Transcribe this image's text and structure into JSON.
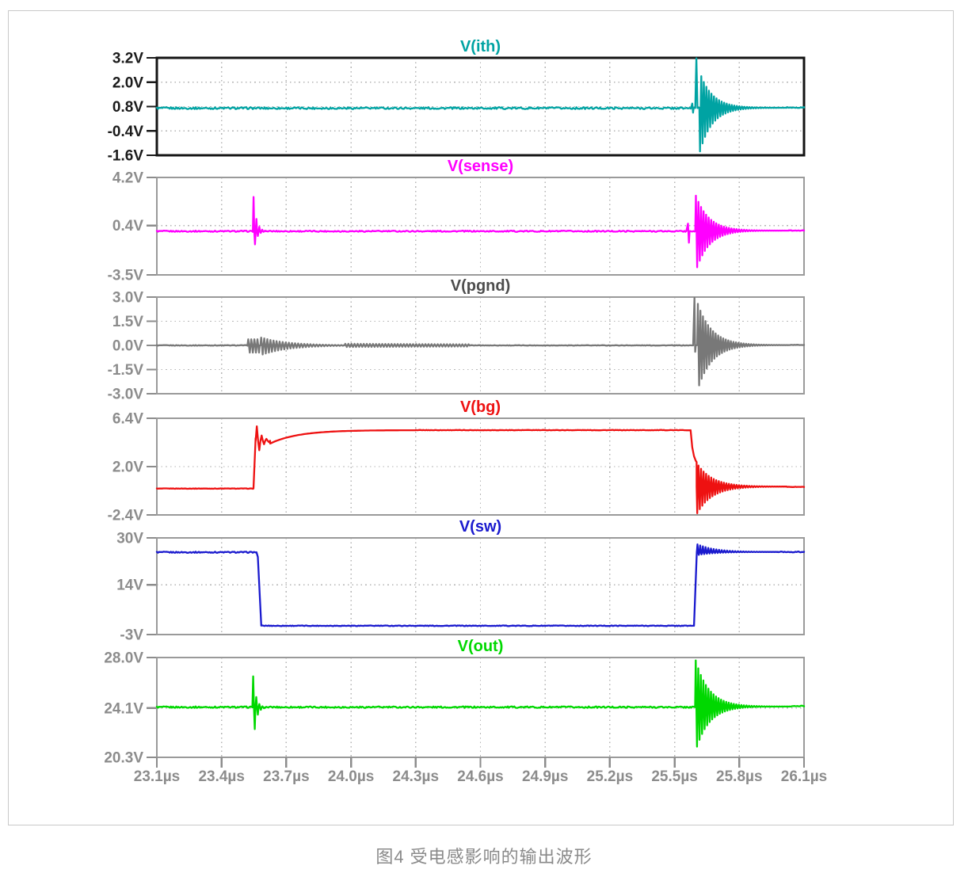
{
  "caption": "图4 受电感影响的输出波形",
  "styles": {
    "background": "#ffffff",
    "figure_border_color": "#c9c9c9",
    "panel_border_color": "#9a9a9a",
    "selected_panel_border_color": "#141414",
    "grid_color": "#b5b5b5",
    "axis_label_color": "#8c8c8c",
    "selected_axis_label_color": "#1a1a1a",
    "caption_color": "#8a8a8a"
  },
  "chart_data": {
    "type": "line",
    "title": "",
    "x_unit": "µs",
    "x_range": [
      23.1,
      26.1
    ],
    "x_tick_step": 0.3,
    "x_tick_labels": [
      "23.1µs",
      "23.4µs",
      "23.7µs",
      "24.0µs",
      "24.3µs",
      "24.6µs",
      "24.9µs",
      "25.2µs",
      "25.5µs",
      "25.8µs",
      "26.1µs"
    ],
    "grid": true,
    "legend_position": "panel-titles",
    "panels": [
      {
        "id": "vith",
        "title": "V(ith)",
        "color": "#00a3a3",
        "selected": true,
        "y_range": [
          -1.6,
          3.2
        ],
        "y_ticks": [
          {
            "label": "3.2V",
            "value": 3.2
          },
          {
            "label": "2.0V",
            "value": 2.0
          },
          {
            "label": "0.8V",
            "value": 0.8
          },
          {
            "label": "-0.4V",
            "value": -0.4
          },
          {
            "label": "-1.6V",
            "value": -1.6
          }
        ],
        "segments": [
          {
            "type": "flat",
            "t0": 23.1,
            "t1": 25.575,
            "v": 0.72,
            "noise": 0.045
          },
          {
            "type": "spike",
            "t": 25.582,
            "base": 0.72,
            "hi": 0.95,
            "lo": 0.5,
            "w": 0.012
          },
          {
            "type": "flat",
            "t0": 25.588,
            "t1": 25.594,
            "v": 0.73,
            "noise": 0.02
          },
          {
            "type": "spike",
            "t": 25.601,
            "base": 0.73,
            "hi": 3.18,
            "w": 0.01
          },
          {
            "type": "burst",
            "t0": 25.615,
            "t1": 26.02,
            "center": 0.74,
            "hi": 2.55,
            "lo": -1.52,
            "f": 85,
            "decay": 0.058,
            "phase": 3.14159
          },
          {
            "type": "flat",
            "t0": 26.02,
            "t1": 26.1,
            "v": 0.75,
            "noise": 0.02
          }
        ]
      },
      {
        "id": "vsense",
        "title": "V(sense)",
        "color": "#ff00ff",
        "selected": false,
        "y_range": [
          -3.5,
          4.2
        ],
        "y_ticks": [
          {
            "label": "4.2V",
            "value": 4.2
          },
          {
            "label": "0.4V",
            "value": 0.4
          },
          {
            "label": "-3.5V",
            "value": -3.5
          }
        ],
        "segments": [
          {
            "type": "flat",
            "t0": 23.1,
            "t1": 23.545,
            "v": -0.05,
            "noise": 0.05
          },
          {
            "type": "burst",
            "t0": 23.545,
            "t1": 23.605,
            "center": -0.05,
            "hi": 3.45,
            "lo": -2.3,
            "f": 75,
            "decay": 0.013,
            "phase": 0
          },
          {
            "type": "flat",
            "t0": 23.605,
            "t1": 25.55,
            "v": -0.05,
            "noise": 0.05
          },
          {
            "type": "spike",
            "t": 25.562,
            "base": -0.05,
            "hi": 0.55,
            "lo": -0.95,
            "w": 0.015
          },
          {
            "type": "flat",
            "t0": 25.572,
            "t1": 25.596,
            "v": -0.05,
            "noise": 0.03
          },
          {
            "type": "burst",
            "t0": 25.596,
            "t1": 26.03,
            "center": 0.0,
            "hi": 2.9,
            "lo": -3.35,
            "f": 85,
            "decay": 0.06,
            "phase": 0
          },
          {
            "type": "flat",
            "t0": 26.03,
            "t1": 26.1,
            "v": 0.0,
            "noise": 0.03
          }
        ]
      },
      {
        "id": "vpgnd",
        "title": "V(pgnd)",
        "color": "#787878",
        "title_color": "#4d4d4d",
        "selected": false,
        "y_range": [
          -3.0,
          3.0
        ],
        "y_ticks": [
          {
            "label": "3.0V",
            "value": 3.0
          },
          {
            "label": "1.5V",
            "value": 1.5
          },
          {
            "label": "0.0V",
            "value": 0.0
          },
          {
            "label": "-1.5V",
            "value": -1.5
          },
          {
            "label": "-3.0V",
            "value": -3.0
          }
        ],
        "segments": [
          {
            "type": "flat",
            "t0": 23.1,
            "t1": 23.52,
            "v": 0.0,
            "noise": 0.02
          },
          {
            "type": "burst",
            "t0": 23.52,
            "t1": 23.58,
            "center": 0,
            "hi": 0.38,
            "lo": -0.45,
            "f": 70,
            "decay": 9,
            "phase": 0
          },
          {
            "type": "burst",
            "t0": 23.58,
            "t1": 23.97,
            "center": 0,
            "hi": 0.5,
            "lo": -0.62,
            "f": 70,
            "decay": 0.12,
            "phase": 0
          },
          {
            "type": "burst",
            "t0": 23.97,
            "t1": 24.55,
            "center": 0,
            "hi": 0.1,
            "lo": -0.1,
            "f": 70,
            "decay": 1.5,
            "phase": 0
          },
          {
            "type": "flat",
            "t0": 24.55,
            "t1": 25.585,
            "v": 0.0,
            "noise": 0.015
          },
          {
            "type": "spike",
            "t": 25.592,
            "base": 0,
            "hi": 2.95,
            "lo": -0.4,
            "w": 0.012
          },
          {
            "type": "burst",
            "t0": 25.605,
            "t1": 26.03,
            "center": 0.02,
            "hi": 2.7,
            "lo": -2.85,
            "f": 85,
            "decay": 0.065,
            "phase": 0
          },
          {
            "type": "flat",
            "t0": 26.03,
            "t1": 26.1,
            "v": 0.03,
            "noise": 0.015
          }
        ]
      },
      {
        "id": "vbg",
        "title": "V(bg)",
        "color": "#ee1111",
        "selected": false,
        "y_range": [
          -2.4,
          6.4
        ],
        "y_ticks": [
          {
            "label": "6.4V",
            "value": 6.4
          },
          {
            "label": "2.0V",
            "value": 2.0
          },
          {
            "label": "-2.4V",
            "value": -2.4
          }
        ],
        "segments": [
          {
            "type": "flat",
            "t0": 23.1,
            "t1": 23.548,
            "v": 0.0,
            "noise": 0.02
          },
          {
            "type": "ramp",
            "t0": 23.548,
            "t1": 23.558,
            "v0": 0.0,
            "v1": 4.6
          },
          {
            "type": "burst",
            "t0": 23.558,
            "t1": 23.625,
            "center": 4.35,
            "hi": 6.05,
            "lo": 2.5,
            "f": 45,
            "decay": 0.022,
            "phase": 0
          },
          {
            "type": "exp",
            "t0": 23.625,
            "t1": 24.3,
            "v0": 4.1,
            "v1": 5.32,
            "tau": 0.13
          },
          {
            "type": "flat",
            "t0": 24.3,
            "t1": 25.574,
            "v": 5.32,
            "noise": 0.02
          },
          {
            "type": "exp",
            "t0": 25.574,
            "t1": 25.602,
            "v0": 5.32,
            "v1": 2.1,
            "tau": 0.012
          },
          {
            "type": "burst",
            "t0": 25.602,
            "t1": 26.02,
            "center": 0.18,
            "hi": 2.35,
            "lo": -2.35,
            "f": 85,
            "decay": 0.07,
            "phase": 3.14159
          },
          {
            "type": "flat",
            "t0": 26.02,
            "t1": 26.1,
            "v": 0.15,
            "noise": 0.02
          }
        ]
      },
      {
        "id": "vsw",
        "title": "V(sw)",
        "color": "#1a1ace",
        "selected": false,
        "y_range": [
          -3,
          30
        ],
        "y_ticks": [
          {
            "label": "30V",
            "value": 30
          },
          {
            "label": "14V",
            "value": 14
          },
          {
            "label": "-3V",
            "value": -3
          }
        ],
        "segments": [
          {
            "type": "flat",
            "t0": 23.1,
            "t1": 23.562,
            "v": 25.1,
            "noise": 0.2
          },
          {
            "type": "ramp",
            "t0": 23.562,
            "t1": 23.568,
            "v0": 25.1,
            "v1": 23.5
          },
          {
            "type": "ramp",
            "t0": 23.568,
            "t1": 23.584,
            "v0": 23.5,
            "v1": 0.2
          },
          {
            "type": "flat",
            "t0": 23.584,
            "t1": 25.59,
            "v": 0.0,
            "noise": 0.12
          },
          {
            "type": "ramp",
            "t0": 25.59,
            "t1": 25.603,
            "v0": 0.0,
            "v1": 25.5
          },
          {
            "type": "burst",
            "t0": 25.603,
            "t1": 25.98,
            "center": 25.2,
            "hi": 27.9,
            "lo": 24.1,
            "f": 80,
            "decay": 0.08,
            "phase": 0
          },
          {
            "type": "flat",
            "t0": 25.98,
            "t1": 26.1,
            "v": 25.2,
            "noise": 0.15
          }
        ]
      },
      {
        "id": "vout",
        "title": "V(out)",
        "color": "#00d800",
        "selected": false,
        "y_range": [
          20.3,
          28.0
        ],
        "y_ticks": [
          {
            "label": "28.0V",
            "value": 28.0
          },
          {
            "label": "24.1V",
            "value": 24.1
          },
          {
            "label": "20.3V",
            "value": 20.3
          }
        ],
        "segments": [
          {
            "type": "flat",
            "t0": 23.1,
            "t1": 23.543,
            "v": 24.17,
            "noise": 0.06
          },
          {
            "type": "burst",
            "t0": 23.543,
            "t1": 23.602,
            "center": 24.15,
            "hi": 27.3,
            "lo": 20.35,
            "f": 70,
            "decay": 0.013,
            "phase": 0
          },
          {
            "type": "flat",
            "t0": 23.602,
            "t1": 25.595,
            "v": 24.17,
            "noise": 0.06
          },
          {
            "type": "burst",
            "t0": 25.595,
            "t1": 26.04,
            "center": 24.22,
            "hi": 27.95,
            "lo": 20.65,
            "f": 85,
            "decay": 0.062,
            "phase": 0
          },
          {
            "type": "flat",
            "t0": 26.04,
            "t1": 26.1,
            "v": 24.25,
            "noise": 0.04
          }
        ]
      }
    ]
  }
}
